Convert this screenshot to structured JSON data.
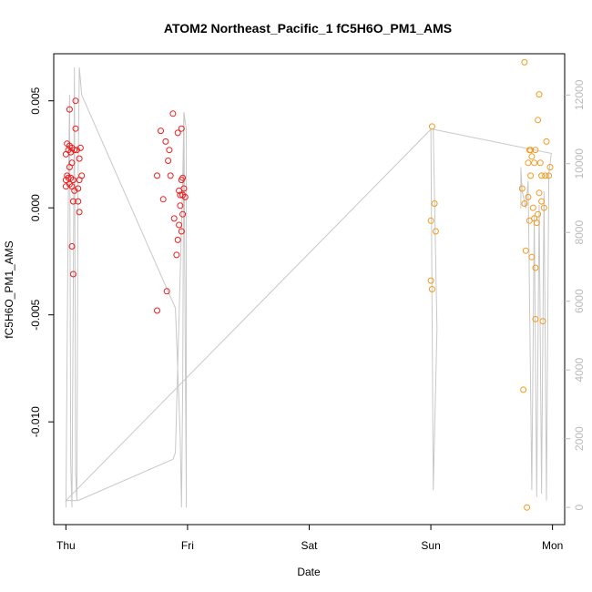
{
  "chart_data": {
    "type": "scatter",
    "title": "ATOM2 Northeast_Pacific_1 fC5H6O_PM1_AMS",
    "xlabel": "Date",
    "ylabel": "fC5H6O_PM1_AMS",
    "x_ticks": [
      {
        "label": "Thu",
        "value": 0
      },
      {
        "label": "Fri",
        "value": 1
      },
      {
        "label": "Sat",
        "value": 2
      },
      {
        "label": "Sun",
        "value": 3
      },
      {
        "label": "Mon",
        "value": 4
      }
    ],
    "y_ticks": [
      {
        "label": "0.005",
        "value": 0.005
      },
      {
        "label": "0.000",
        "value": 0.0
      },
      {
        "label": "-0.005",
        "value": -0.005
      },
      {
        "label": "-0.010",
        "value": -0.01
      }
    ],
    "y2_ticks": [
      {
        "label": "0",
        "value": 0
      },
      {
        "label": "2000",
        "value": 2000
      },
      {
        "label": "4000",
        "value": 4000
      },
      {
        "label": "6000",
        "value": 6000
      },
      {
        "label": "8000",
        "value": 8000
      },
      {
        "label": "10000",
        "value": 10000
      },
      {
        "label": "12000",
        "value": 12000
      }
    ],
    "xlim": [
      -0.1,
      4.1
    ],
    "ylim": [
      -0.0148,
      0.0072
    ],
    "y2lim": [
      -500,
      13200
    ],
    "colors": {
      "series_red": "#ee1c1c",
      "series_orange": "#f39a1e",
      "altitude_line": "#c8c8c8"
    },
    "series": [
      {
        "color": "#ee1c1c",
        "points": [
          [
            0.01,
            0.003
          ],
          [
            0.03,
            0.0029
          ],
          [
            0.02,
            0.0027
          ],
          [
            0.0,
            0.0025
          ],
          [
            0.04,
            0.0026
          ],
          [
            0.05,
            0.0028
          ],
          [
            0.07,
            0.0027
          ],
          [
            0.09,
            0.0027
          ],
          [
            0.12,
            0.0028
          ],
          [
            0.03,
            0.0046
          ],
          [
            0.08,
            0.0037
          ],
          [
            0.08,
            0.005
          ],
          [
            0.03,
            0.0019
          ],
          [
            0.05,
            0.0021
          ],
          [
            0.11,
            0.0023
          ],
          [
            0.01,
            0.0015
          ],
          [
            0.0,
            0.0013
          ],
          [
            0.02,
            0.0014
          ],
          [
            0.04,
            0.0014
          ],
          [
            0.06,
            0.0013
          ],
          [
            0.03,
            0.0011
          ],
          [
            0.0,
            0.001
          ],
          [
            0.05,
            0.001
          ],
          [
            0.11,
            0.0013
          ],
          [
            0.13,
            0.0015
          ],
          [
            0.07,
            0.0008
          ],
          [
            0.1,
            0.0009
          ],
          [
            0.06,
            0.0003
          ],
          [
            0.1,
            0.0003
          ],
          [
            0.11,
            -0.0002
          ],
          [
            0.05,
            -0.0018
          ],
          [
            0.06,
            -0.0031
          ],
          [
            0.75,
            0.0015
          ],
          [
            0.78,
            0.0036
          ],
          [
            0.82,
            0.0031
          ],
          [
            0.85,
            0.0027
          ],
          [
            0.84,
            0.0022
          ],
          [
            0.86,
            0.0015
          ],
          [
            0.88,
            0.0044
          ],
          [
            0.92,
            0.0035
          ],
          [
            0.95,
            0.0037
          ],
          [
            0.8,
            0.0004
          ],
          [
            0.89,
            -0.0005
          ],
          [
            0.93,
            0.0008
          ],
          [
            0.94,
            0.0006
          ],
          [
            0.96,
            0.0006
          ],
          [
            0.95,
            0.0013
          ],
          [
            0.96,
            0.0014
          ],
          [
            0.97,
            0.0009
          ],
          [
            0.98,
            0.0005
          ],
          [
            0.94,
            0.0001
          ],
          [
            0.96,
            -0.0003
          ],
          [
            0.93,
            -0.0008
          ],
          [
            0.95,
            -0.0011
          ],
          [
            0.92,
            -0.0015
          ],
          [
            0.91,
            -0.0022
          ],
          [
            0.83,
            -0.0039
          ],
          [
            0.75,
            -0.0048
          ]
        ]
      },
      {
        "color": "#f39a1e",
        "points": [
          [
            3.01,
            0.0038
          ],
          [
            3.0,
            -0.0006
          ],
          [
            3.03,
            0.0002
          ],
          [
            3.04,
            -0.0011
          ],
          [
            3.0,
            -0.0034
          ],
          [
            3.01,
            -0.0038
          ],
          [
            3.75,
            0.0009
          ],
          [
            3.77,
            0.0002
          ],
          [
            3.78,
            -0.002
          ],
          [
            3.76,
            -0.0085
          ],
          [
            3.79,
            -0.014
          ],
          [
            3.77,
            0.0068
          ],
          [
            3.8,
            0.0021
          ],
          [
            3.81,
            0.0027
          ],
          [
            3.82,
            0.0027
          ],
          [
            3.83,
            0.0024
          ],
          [
            3.82,
            0.0015
          ],
          [
            3.8,
            0.0005
          ],
          [
            3.81,
            -0.0006
          ],
          [
            3.85,
            0.0021
          ],
          [
            3.86,
            0.0027
          ],
          [
            3.84,
            0.0
          ],
          [
            3.85,
            -0.0005
          ],
          [
            3.83,
            -0.0023
          ],
          [
            3.86,
            -0.0028
          ],
          [
            3.88,
            0.0041
          ],
          [
            3.89,
            0.0053
          ],
          [
            3.9,
            0.0021
          ],
          [
            3.91,
            0.0015
          ],
          [
            3.89,
            0.0007
          ],
          [
            3.91,
            0.0003
          ],
          [
            3.88,
            -0.0003
          ],
          [
            3.87,
            -0.0007
          ],
          [
            3.86,
            -0.0052
          ],
          [
            3.92,
            -0.0053
          ],
          [
            3.95,
            0.0031
          ],
          [
            3.98,
            0.0019
          ],
          [
            3.94,
            0.0015
          ],
          [
            3.97,
            0.0015
          ],
          [
            3.93,
            0.0
          ]
        ]
      }
    ],
    "altitude_line": {
      "axis": "right",
      "points": [
        [
          0.0,
          0
        ],
        [
          0.02,
          9000
        ],
        [
          0.03,
          12000
        ],
        [
          0.04,
          1200
        ],
        [
          0.05,
          0
        ],
        [
          0.06,
          6000
        ],
        [
          0.07,
          12800
        ],
        [
          0.08,
          1000
        ],
        [
          0.09,
          200
        ],
        [
          0.1,
          9500
        ],
        [
          0.11,
          12800
        ],
        [
          0.13,
          12000
        ],
        [
          0.9,
          5800
        ],
        [
          0.93,
          3000
        ],
        [
          0.94,
          2000
        ],
        [
          0.95,
          0
        ],
        [
          0.96,
          3500
        ],
        [
          0.97,
          11500
        ],
        [
          0.98,
          5000
        ],
        [
          0.99,
          0
        ],
        [
          0.99,
          3000
        ],
        [
          0.99,
          11000
        ],
        [
          0.97,
          11500
        ],
        [
          0.96,
          9500
        ],
        [
          0.9,
          1600
        ],
        [
          0.88,
          1400
        ],
        [
          0.1,
          200
        ],
        [
          0.0,
          200
        ],
        [
          3.0,
          11000
        ],
        [
          3.02,
          500
        ],
        [
          3.05,
          5200
        ],
        [
          3.02,
          11000
        ],
        [
          3.99,
          10300
        ],
        [
          3.97,
          9700
        ],
        [
          3.95,
          200
        ],
        [
          3.93,
          9200
        ],
        [
          3.91,
          400
        ],
        [
          3.89,
          8800
        ],
        [
          3.87,
          300
        ],
        [
          3.85,
          8500
        ],
        [
          3.83,
          500
        ],
        [
          3.8,
          9500
        ],
        [
          3.78,
          8700
        ],
        [
          3.75,
          9200
        ],
        [
          3.74,
          9900
        ],
        [
          3.74,
          8700
        ]
      ]
    }
  }
}
